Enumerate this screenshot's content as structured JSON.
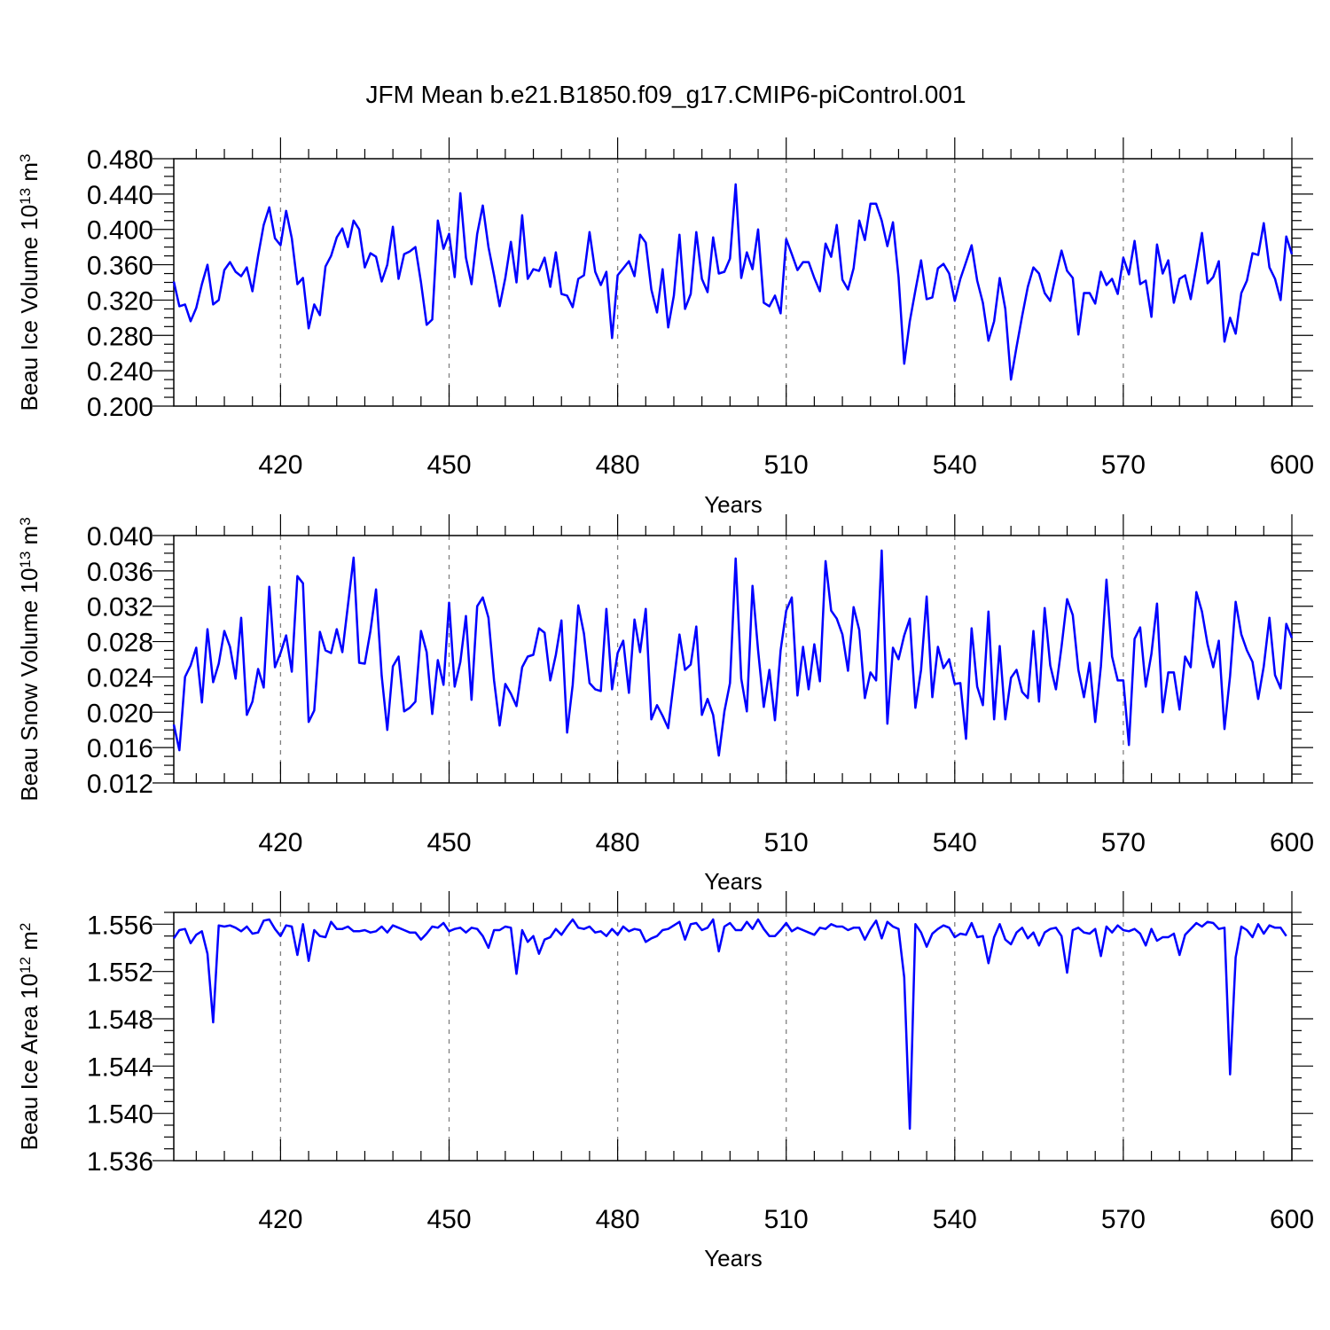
{
  "figure": {
    "title": "JFM Mean b.e21.B1850.f09_g17.CMIP6-piControl.001"
  },
  "chart_data": [
    {
      "type": "line",
      "ylabel": "Beau Ice Volume 10",
      "ylabel_exp": "13",
      "ylabel_unit": " m",
      "ylabel_unit_exp": "3",
      "xlabel": "Years",
      "xlim": [
        401,
        600
      ],
      "ylim": [
        0.2,
        0.48
      ],
      "x_ticks": [
        420,
        450,
        480,
        510,
        540,
        570,
        600
      ],
      "x_tick_labels": [
        "420",
        "450",
        "480",
        "510",
        "540",
        "570",
        "600"
      ],
      "y_ticks": [
        0.2,
        0.24,
        0.28,
        0.32,
        0.36,
        0.4,
        0.44,
        0.48
      ],
      "y_tick_labels": [
        "0.200",
        "0.240",
        "0.280",
        "0.320",
        "0.360",
        "0.400",
        "0.440",
        "0.480"
      ],
      "grid": "vertical dashed at major x ticks",
      "color": "#0000ff",
      "x_start": 401,
      "values": [
        0.341,
        0.313,
        0.315,
        0.296,
        0.311,
        0.338,
        0.36,
        0.315,
        0.32,
        0.354,
        0.363,
        0.352,
        0.347,
        0.357,
        0.33,
        0.37,
        0.405,
        0.425,
        0.39,
        0.382,
        0.421,
        0.39,
        0.338,
        0.345,
        0.288,
        0.315,
        0.303,
        0.358,
        0.37,
        0.391,
        0.401,
        0.38,
        0.41,
        0.4,
        0.357,
        0.373,
        0.369,
        0.341,
        0.36,
        0.403,
        0.344,
        0.372,
        0.375,
        0.38,
        0.34,
        0.292,
        0.298,
        0.41,
        0.378,
        0.395,
        0.346,
        0.441,
        0.368,
        0.338,
        0.395,
        0.427,
        0.38,
        0.348,
        0.313,
        0.345,
        0.386,
        0.34,
        0.416,
        0.344,
        0.355,
        0.353,
        0.368,
        0.335,
        0.374,
        0.327,
        0.325,
        0.312,
        0.344,
        0.348,
        0.397,
        0.352,
        0.337,
        0.352,
        0.277,
        0.348,
        0.356,
        0.364,
        0.347,
        0.394,
        0.385,
        0.332,
        0.306,
        0.355,
        0.289,
        0.325,
        0.394,
        0.31,
        0.327,
        0.397,
        0.344,
        0.329,
        0.391,
        0.35,
        0.352,
        0.367,
        0.451,
        0.345,
        0.374,
        0.355,
        0.4,
        0.317,
        0.313,
        0.325,
        0.305,
        0.389,
        0.372,
        0.354,
        0.363,
        0.363,
        0.345,
        0.33,
        0.384,
        0.369,
        0.405,
        0.343,
        0.332,
        0.356,
        0.41,
        0.388,
        0.429,
        0.429,
        0.41,
        0.381,
        0.408,
        0.346,
        0.248,
        0.296,
        0.331,
        0.365,
        0.321,
        0.323,
        0.356,
        0.361,
        0.35,
        0.319,
        0.344,
        0.363,
        0.382,
        0.342,
        0.317,
        0.274,
        0.296,
        0.345,
        0.31,
        0.23,
        0.267,
        0.302,
        0.335,
        0.357,
        0.35,
        0.328,
        0.319,
        0.349,
        0.376,
        0.353,
        0.345,
        0.281,
        0.328,
        0.328,
        0.316,
        0.352,
        0.337,
        0.344,
        0.327,
        0.368,
        0.349,
        0.387,
        0.338,
        0.342,
        0.301,
        0.383,
        0.35,
        0.365,
        0.317,
        0.344,
        0.348,
        0.321,
        0.358,
        0.396,
        0.339,
        0.346,
        0.364,
        0.273,
        0.3,
        0.282,
        0.328,
        0.342,
        0.373,
        0.371,
        0.407,
        0.357,
        0.344,
        0.32,
        0.392,
        0.372
      ]
    },
    {
      "type": "line",
      "ylabel": "Beau Snow Volume 10",
      "ylabel_exp": "13",
      "ylabel_unit": " m",
      "ylabel_unit_exp": "3",
      "xlabel": "Years",
      "xlim": [
        401,
        600
      ],
      "ylim": [
        0.012,
        0.04
      ],
      "x_ticks": [
        420,
        450,
        480,
        510,
        540,
        570,
        600
      ],
      "x_tick_labels": [
        "420",
        "450",
        "480",
        "510",
        "540",
        "570",
        "600"
      ],
      "y_ticks": [
        0.012,
        0.016,
        0.02,
        0.024,
        0.028,
        0.032,
        0.036,
        0.04
      ],
      "y_tick_labels": [
        "0.012",
        "0.016",
        "0.020",
        "0.024",
        "0.028",
        "0.032",
        "0.036",
        "0.040"
      ],
      "grid": "vertical dashed at major x ticks",
      "color": "#0000ff",
      "x_start": 401,
      "values": [
        0.0186,
        0.0157,
        0.024,
        0.0253,
        0.0273,
        0.0211,
        0.0294,
        0.0234,
        0.0255,
        0.0292,
        0.0274,
        0.0238,
        0.0307,
        0.0197,
        0.0212,
        0.0249,
        0.0228,
        0.0342,
        0.0251,
        0.0267,
        0.0287,
        0.0246,
        0.0354,
        0.0346,
        0.0189,
        0.0202,
        0.0291,
        0.027,
        0.0267,
        0.0294,
        0.0268,
        0.0321,
        0.0375,
        0.0256,
        0.0255,
        0.0292,
        0.0339,
        0.0241,
        0.018,
        0.0252,
        0.0263,
        0.0201,
        0.0205,
        0.0212,
        0.0292,
        0.0268,
        0.0198,
        0.0259,
        0.0231,
        0.0324,
        0.0229,
        0.0257,
        0.0309,
        0.0214,
        0.032,
        0.033,
        0.0307,
        0.0236,
        0.0185,
        0.0232,
        0.0221,
        0.0207,
        0.0251,
        0.0263,
        0.0265,
        0.0295,
        0.029,
        0.0236,
        0.0265,
        0.0304,
        0.0177,
        0.0231,
        0.0321,
        0.0289,
        0.0233,
        0.0226,
        0.0224,
        0.0317,
        0.0226,
        0.0267,
        0.0281,
        0.0222,
        0.0305,
        0.0268,
        0.0317,
        0.0192,
        0.0208,
        0.0196,
        0.0182,
        0.0235,
        0.0288,
        0.0248,
        0.0254,
        0.0297,
        0.0197,
        0.0215,
        0.0197,
        0.0151,
        0.0201,
        0.0233,
        0.0374,
        0.0238,
        0.0201,
        0.0343,
        0.027,
        0.0206,
        0.0248,
        0.0191,
        0.027,
        0.0315,
        0.033,
        0.0219,
        0.0274,
        0.0226,
        0.0277,
        0.0235,
        0.0371,
        0.0315,
        0.0306,
        0.0288,
        0.0247,
        0.0319,
        0.0293,
        0.0216,
        0.0245,
        0.0236,
        0.0383,
        0.0187,
        0.0273,
        0.026,
        0.0287,
        0.0306,
        0.0205,
        0.0248,
        0.0331,
        0.0217,
        0.0274,
        0.025,
        0.026,
        0.0232,
        0.0233,
        0.017,
        0.0295,
        0.0229,
        0.0208,
        0.0314,
        0.0192,
        0.0275,
        0.0192,
        0.0239,
        0.0248,
        0.0223,
        0.0216,
        0.0292,
        0.0212,
        0.0318,
        0.0253,
        0.0226,
        0.0274,
        0.0328,
        0.031,
        0.0248,
        0.0217,
        0.0256,
        0.0189,
        0.0252,
        0.035,
        0.0263,
        0.0236,
        0.0236,
        0.0163,
        0.0283,
        0.0296,
        0.0229,
        0.0266,
        0.0323,
        0.02,
        0.0245,
        0.0245,
        0.0203,
        0.0263,
        0.0251,
        0.0336,
        0.0314,
        0.0277,
        0.0251,
        0.0281,
        0.0181,
        0.0241,
        0.0325,
        0.0288,
        0.027,
        0.0257,
        0.0215,
        0.0252,
        0.0307,
        0.0242,
        0.0227,
        0.03,
        0.0284
      ]
    },
    {
      "type": "line",
      "ylabel": "Beau Ice Area 10",
      "ylabel_exp": "12",
      "ylabel_unit": " m",
      "ylabel_unit_exp": "2",
      "xlabel": "Years",
      "xlim": [
        401,
        600
      ],
      "ylim": [
        1.536,
        1.557
      ],
      "x_ticks": [
        420,
        450,
        480,
        510,
        540,
        570,
        600
      ],
      "x_tick_labels": [
        "420",
        "450",
        "480",
        "510",
        "540",
        "570",
        "600"
      ],
      "y_ticks": [
        1.536,
        1.54,
        1.544,
        1.548,
        1.552,
        1.556
      ],
      "y_tick_labels": [
        "1.536",
        "1.540",
        "1.544",
        "1.548",
        "1.552",
        "1.556"
      ],
      "grid": "vertical dashed at major x ticks",
      "color": "#0000ff",
      "x_start": 401,
      "values": [
        1.5548,
        1.5555,
        1.5556,
        1.5544,
        1.5551,
        1.5554,
        1.5535,
        1.5477,
        1.5559,
        1.5558,
        1.5559,
        1.5557,
        1.5554,
        1.5558,
        1.5552,
        1.5553,
        1.5563,
        1.5564,
        1.5556,
        1.555,
        1.5559,
        1.5558,
        1.5534,
        1.556,
        1.5529,
        1.5555,
        1.555,
        1.5549,
        1.5562,
        1.5556,
        1.5556,
        1.5558,
        1.5554,
        1.5554,
        1.5555,
        1.5553,
        1.5554,
        1.5558,
        1.5553,
        1.5559,
        1.5557,
        1.5555,
        1.5553,
        1.5553,
        1.5547,
        1.5552,
        1.5558,
        1.5557,
        1.5561,
        1.5554,
        1.5556,
        1.5557,
        1.5553,
        1.5557,
        1.5556,
        1.555,
        1.554,
        1.5555,
        1.5555,
        1.5558,
        1.5557,
        1.5518,
        1.5555,
        1.5545,
        1.555,
        1.5535,
        1.5547,
        1.5549,
        1.5556,
        1.5551,
        1.5558,
        1.5564,
        1.5557,
        1.5556,
        1.5558,
        1.5553,
        1.5554,
        1.555,
        1.5556,
        1.5551,
        1.5558,
        1.5554,
        1.5556,
        1.5555,
        1.5545,
        1.5548,
        1.555,
        1.5555,
        1.5556,
        1.5559,
        1.5562,
        1.5547,
        1.556,
        1.5561,
        1.5555,
        1.5557,
        1.5564,
        1.5537,
        1.5558,
        1.5561,
        1.5555,
        1.5555,
        1.5562,
        1.5556,
        1.5564,
        1.5556,
        1.555,
        1.555,
        1.5555,
        1.5561,
        1.5554,
        1.5557,
        1.5555,
        1.5553,
        1.5551,
        1.5557,
        1.5556,
        1.556,
        1.5558,
        1.5558,
        1.5555,
        1.5557,
        1.5557,
        1.5547,
        1.5556,
        1.5563,
        1.5548,
        1.5562,
        1.5558,
        1.5556,
        1.5515,
        1.5387,
        1.556,
        1.5553,
        1.5541,
        1.5552,
        1.5556,
        1.5559,
        1.5557,
        1.5549,
        1.5552,
        1.5551,
        1.5561,
        1.5549,
        1.555,
        1.5527,
        1.5549,
        1.556,
        1.5547,
        1.5543,
        1.5553,
        1.5557,
        1.5548,
        1.5553,
        1.5542,
        1.5553,
        1.5556,
        1.5557,
        1.555,
        1.5519,
        1.5555,
        1.5557,
        1.5553,
        1.5552,
        1.5556,
        1.5533,
        1.5558,
        1.5553,
        1.5559,
        1.5555,
        1.5554,
        1.5556,
        1.5552,
        1.5542,
        1.5556,
        1.5546,
        1.5549,
        1.5549,
        1.5552,
        1.5534,
        1.5551,
        1.5556,
        1.5561,
        1.5558,
        1.5562,
        1.5561,
        1.5556,
        1.5557,
        1.5433,
        1.5532,
        1.5558,
        1.5555,
        1.5549,
        1.556,
        1.5552,
        1.5559,
        1.5557,
        1.5557,
        1.555
      ]
    }
  ]
}
